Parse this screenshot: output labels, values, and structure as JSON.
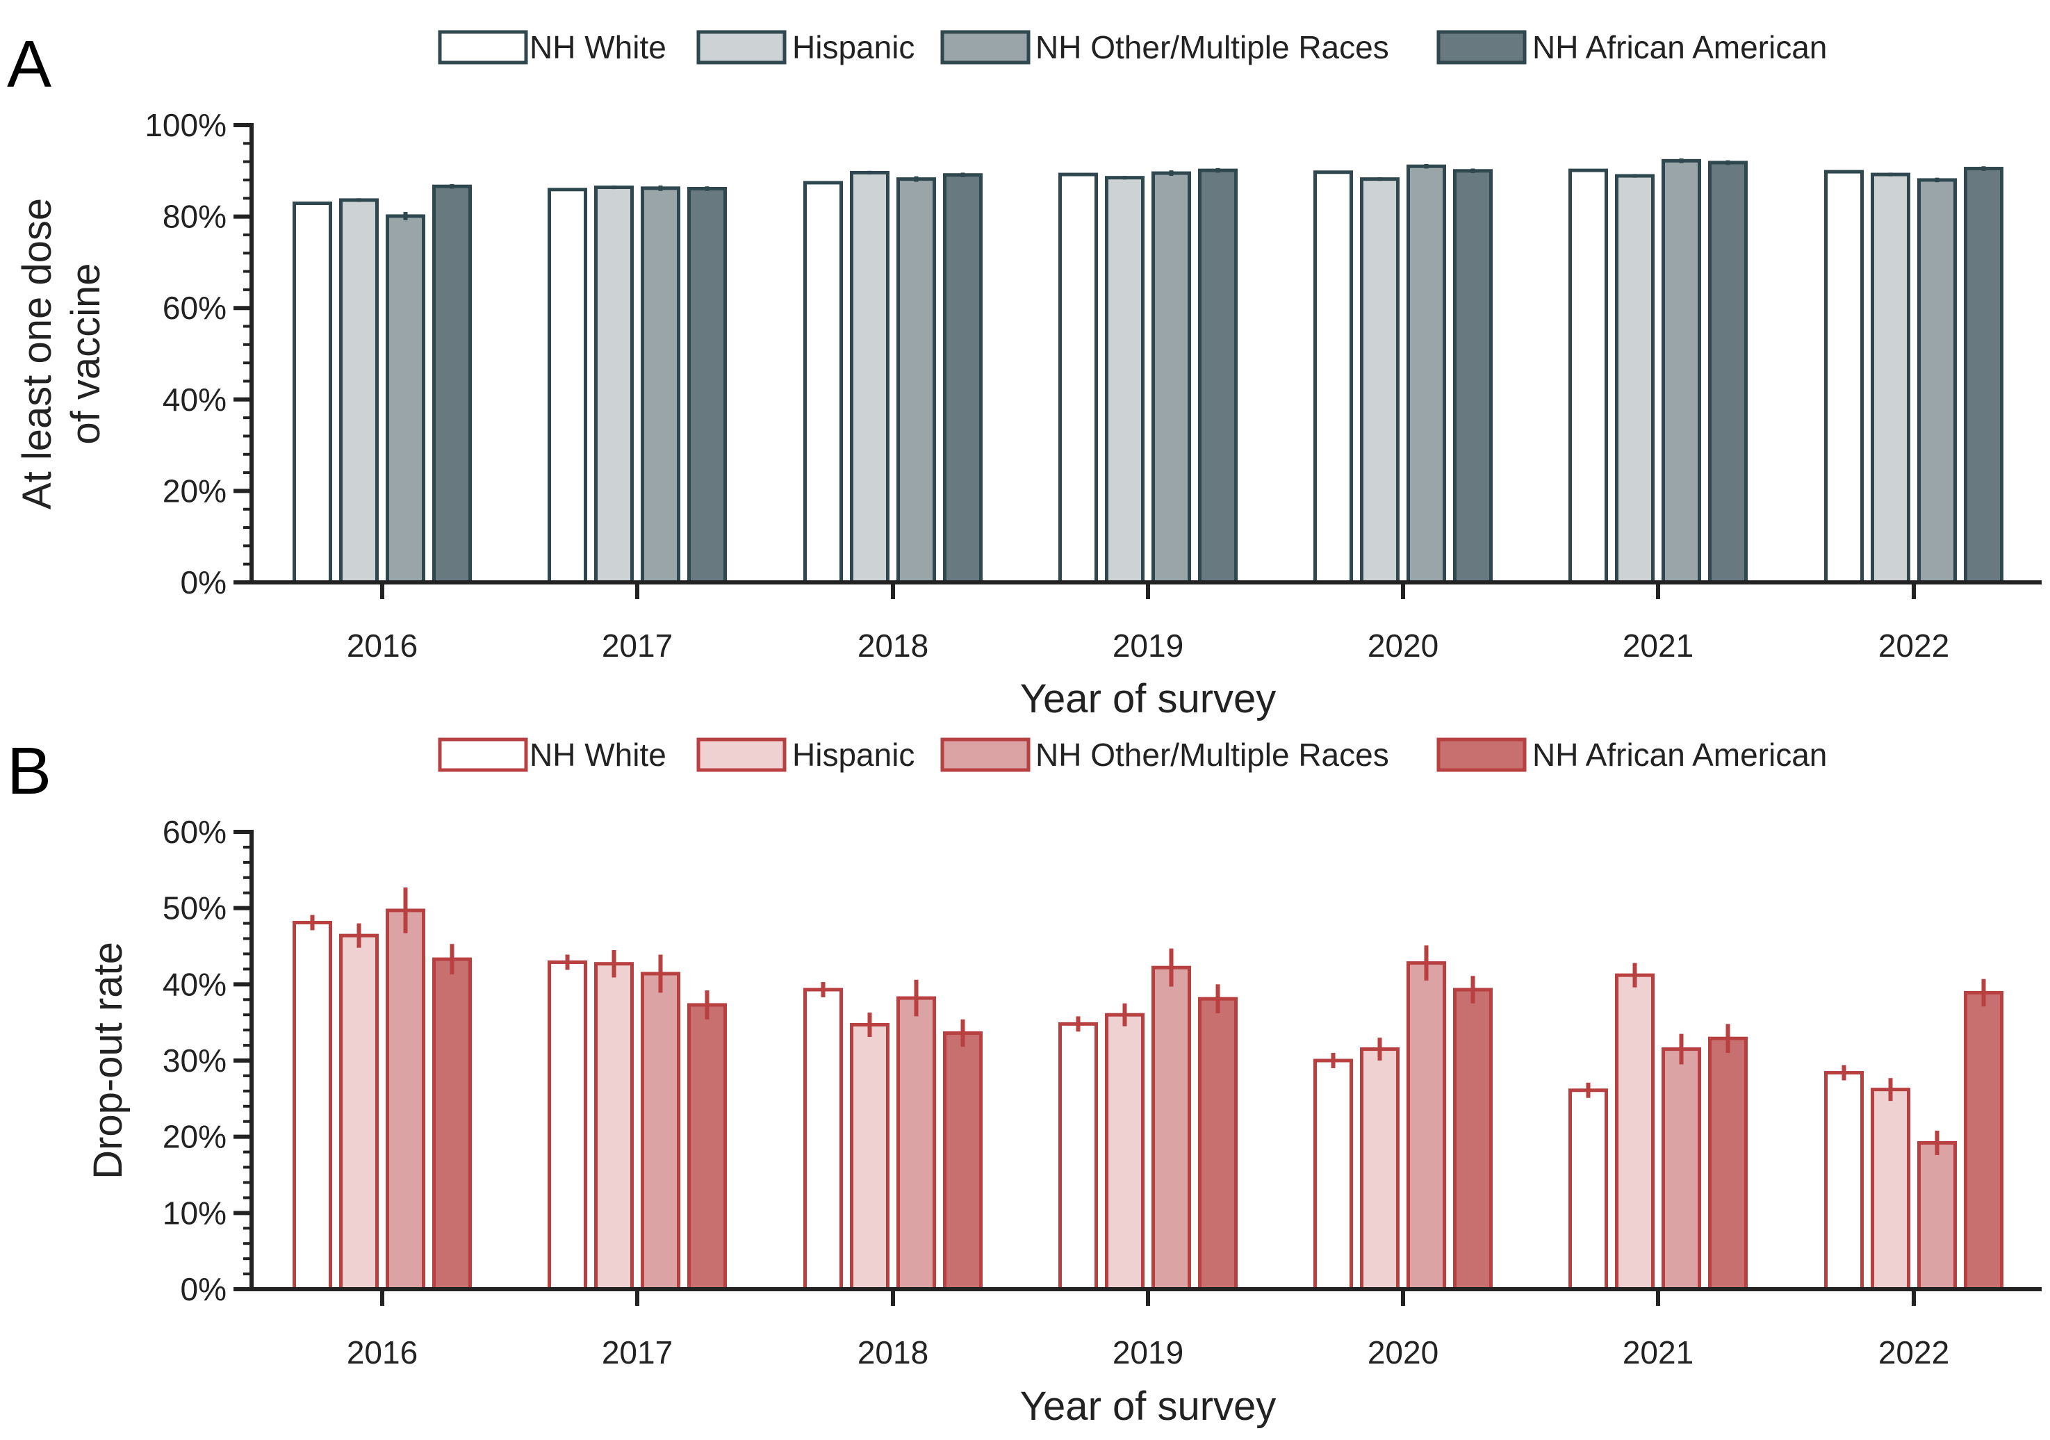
{
  "chart_data": [
    {
      "panel": "A",
      "type": "bar",
      "categories": [
        "2016",
        "2017",
        "2018",
        "2019",
        "2020",
        "2021",
        "2022"
      ],
      "xlabel": "Year of survey",
      "ylabel_lines": [
        "At least one dose",
        "of vaccine"
      ],
      "ylim": [
        0,
        100
      ],
      "yticks": [
        "0%",
        "20%",
        "40%",
        "60%",
        "80%",
        "100%"
      ],
      "legend_position": "top",
      "edge_color": "#2f474f",
      "series": [
        {
          "name": "NH White",
          "color": "#ffffff",
          "values": [
            82.9,
            85.9,
            87.4,
            89.2,
            89.7,
            90.1,
            89.8
          ],
          "err": [
            0.3,
            0.3,
            0.3,
            0.3,
            0.3,
            0.3,
            0.3
          ]
        },
        {
          "name": "Hispanic",
          "color": "#cdd2d4",
          "values": [
            83.6,
            86.4,
            89.6,
            88.5,
            88.2,
            88.9,
            89.2
          ],
          "err": [
            0.4,
            0.4,
            0.4,
            0.4,
            0.4,
            0.4,
            0.4
          ]
        },
        {
          "name": "NH Other/Multiple Races",
          "color": "#9aa5aa",
          "values": [
            80.1,
            86.2,
            88.2,
            89.5,
            91.0,
            92.2,
            88.0
          ],
          "err": [
            0.9,
            0.6,
            0.6,
            0.6,
            0.5,
            0.5,
            0.5
          ]
        },
        {
          "name": "NH African American",
          "color": "#68797f",
          "values": [
            86.6,
            86.1,
            89.1,
            90.1,
            90.0,
            91.8,
            90.5
          ],
          "err": [
            0.5,
            0.5,
            0.5,
            0.5,
            0.5,
            0.5,
            0.5
          ]
        }
      ]
    },
    {
      "panel": "B",
      "type": "bar",
      "categories": [
        "2016",
        "2017",
        "2018",
        "2019",
        "2020",
        "2021",
        "2022"
      ],
      "xlabel": "Year of survey",
      "ylabel_lines": [
        "Drop-out rate"
      ],
      "ylim": [
        0,
        60
      ],
      "yticks": [
        "0%",
        "10%",
        "20%",
        "30%",
        "40%",
        "50%",
        "60%"
      ],
      "legend_position": "top",
      "edge_color": "#b84040",
      "series": [
        {
          "name": "NH White",
          "color": "#ffffff",
          "values": [
            48.1,
            42.9,
            39.3,
            34.8,
            30.0,
            26.1,
            28.4
          ],
          "err": [
            1.0,
            1.0,
            1.0,
            1.0,
            1.0,
            1.0,
            1.0
          ]
        },
        {
          "name": "Hispanic",
          "color": "#efd1d2",
          "values": [
            46.4,
            42.7,
            34.7,
            36.0,
            31.5,
            41.2,
            26.2
          ],
          "err": [
            1.6,
            1.8,
            1.6,
            1.5,
            1.5,
            1.6,
            1.5
          ]
        },
        {
          "name": "NH Other/Multiple Races",
          "color": "#dca3a5",
          "values": [
            49.7,
            41.4,
            38.2,
            42.2,
            42.8,
            31.5,
            19.2
          ],
          "err": [
            3.0,
            2.5,
            2.4,
            2.5,
            2.3,
            2.0,
            1.6
          ]
        },
        {
          "name": "NH African American",
          "color": "#c87070",
          "values": [
            43.3,
            37.3,
            33.6,
            38.1,
            39.3,
            32.9,
            38.9
          ],
          "err": [
            2.0,
            1.9,
            1.8,
            1.9,
            1.8,
            1.9,
            1.8
          ]
        }
      ]
    }
  ]
}
